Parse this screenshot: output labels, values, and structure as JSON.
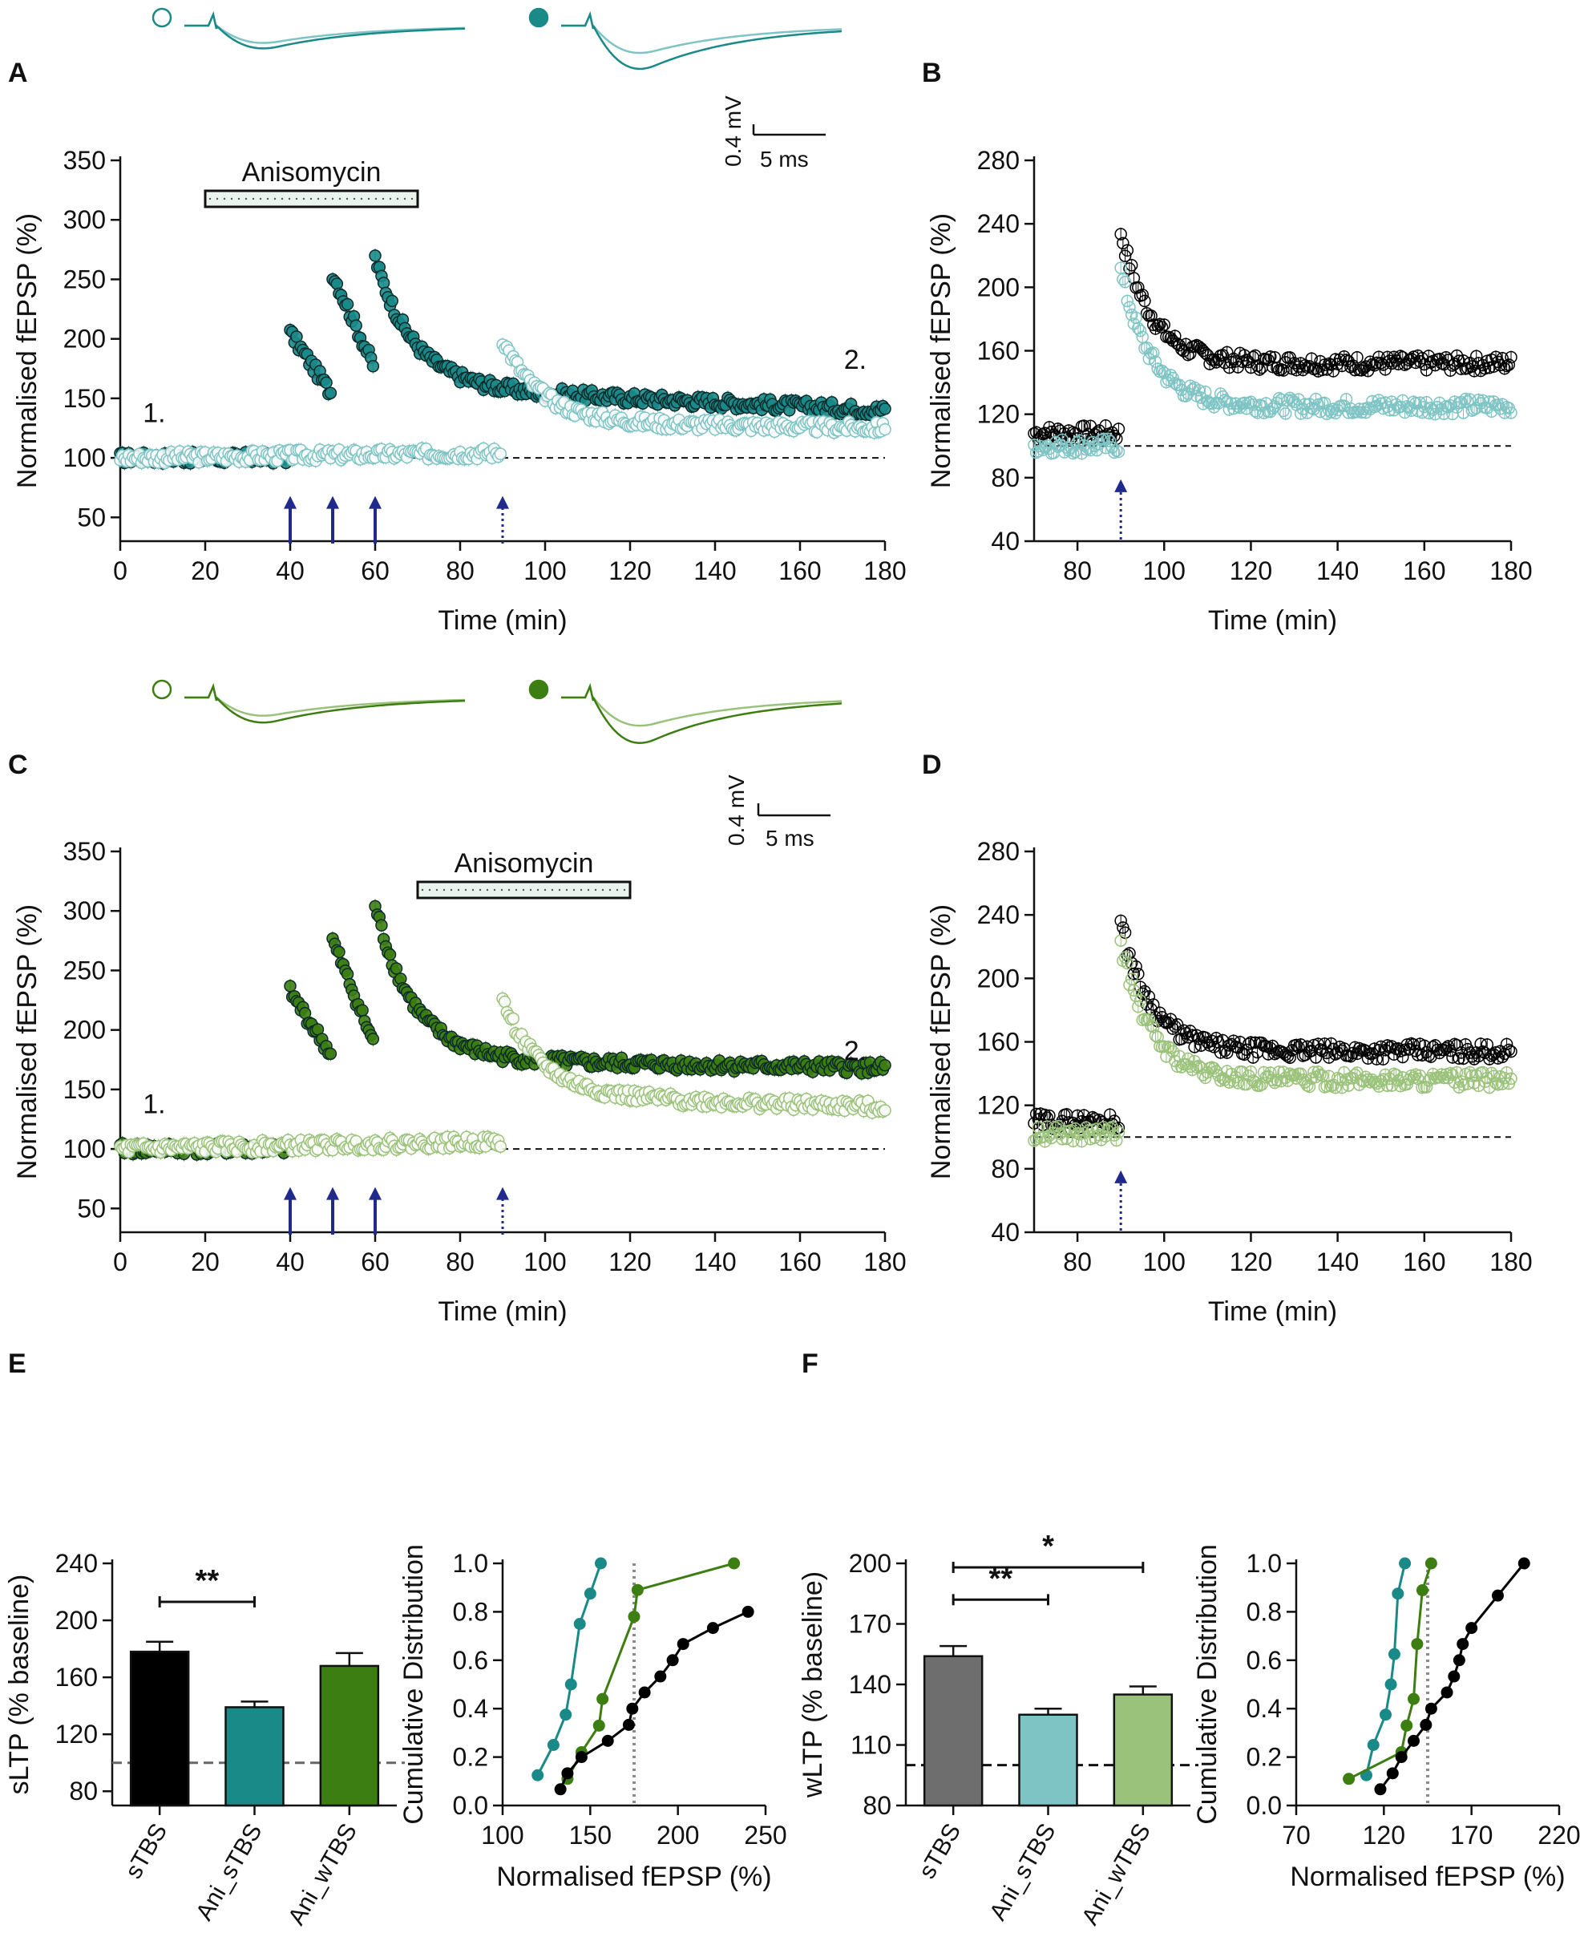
{
  "figure": {
    "panels": {
      "A": "A",
      "B": "B",
      "C": "C",
      "D": "D",
      "E": "E",
      "F": "F"
    }
  },
  "colors": {
    "teal": "#1a8a89",
    "teal_light": "#7fc4c4",
    "green": "#3c7e11",
    "green_light": "#9ac27a",
    "black": "#000000",
    "grey": "#6e6e6e",
    "arrow": "#1f2a8c"
  },
  "scalebar": {
    "voltage": "0.4 mV",
    "time": "5 ms"
  },
  "chart_data": [
    {
      "panel": "A",
      "type": "scatter",
      "title": "",
      "xlabel": "Time (min)",
      "ylabel": "Normalised fEPSP (%)",
      "xlim": [
        0,
        180
      ],
      "ylim": [
        30,
        350
      ],
      "xticks": [
        0,
        20,
        40,
        60,
        80,
        100,
        120,
        140,
        160,
        180
      ],
      "yticks": [
        50,
        100,
        150,
        200,
        250,
        300,
        350
      ],
      "drug": {
        "label": "Anisomycin",
        "start": 20,
        "end": 70
      },
      "tbs_arrows": [
        40,
        50,
        60
      ],
      "weak_arrow": 90,
      "annotations": [
        "1.",
        "2."
      ],
      "baseline": 100,
      "series": [
        {
          "name": "sTBS pathway (filled)",
          "color": "teal",
          "segments": [
            {
              "x": [
                0,
                39
              ],
              "start": 100,
              "end": 100
            },
            {
              "x": [
                40,
                49.5
              ],
              "start": 205,
              "end": 155
            },
            {
              "x": [
                50,
                59.5
              ],
              "start": 255,
              "end": 178
            },
            {
              "x": [
                60,
                180
              ],
              "start": 268,
              "mid": 160,
              "end": 140
            }
          ]
        },
        {
          "name": "wTBS pathway (open)",
          "color": "teal_light",
          "segments": [
            {
              "x": [
                0,
                89.5
              ],
              "start": 100,
              "end": 104
            },
            {
              "x": [
                90,
                180
              ],
              "start": 200,
              "mid": 130,
              "end": 125
            }
          ]
        }
      ]
    },
    {
      "panel": "B",
      "type": "scatter",
      "xlabel": "Time (min)",
      "ylabel": "Normalised fEPSP (%)",
      "xlim": [
        70,
        180
      ],
      "ylim": [
        40,
        280
      ],
      "xticks": [
        80,
        100,
        120,
        140,
        160,
        180
      ],
      "yticks": [
        40,
        80,
        120,
        160,
        200,
        240,
        280
      ],
      "weak_arrow": 90,
      "baseline": 100,
      "series": [
        {
          "name": "control weak (black open)",
          "color": "black",
          "base": 108,
          "peak": 235,
          "plateau": 152
        },
        {
          "name": "Ani weak (teal open)",
          "color": "teal_light",
          "base": 100,
          "peak": 210,
          "plateau": 125
        }
      ]
    },
    {
      "panel": "C",
      "type": "scatter",
      "xlabel": "Time (min)",
      "ylabel": "Normalised fEPSP (%)",
      "xlim": [
        0,
        180
      ],
      "ylim": [
        30,
        350
      ],
      "xticks": [
        0,
        20,
        40,
        60,
        80,
        100,
        120,
        140,
        160,
        180
      ],
      "yticks": [
        50,
        100,
        150,
        200,
        250,
        300,
        350
      ],
      "drug": {
        "label": "Anisomycin",
        "start": 70,
        "end": 120
      },
      "tbs_arrows": [
        40,
        50,
        60
      ],
      "weak_arrow": 90,
      "annotations": [
        "1.",
        "2."
      ],
      "baseline": 100,
      "series": [
        {
          "name": "sTBS pathway (filled)",
          "color": "green",
          "segments": [
            {
              "x": [
                0,
                39
              ],
              "start": 100,
              "end": 100
            },
            {
              "x": [
                40,
                49.5
              ],
              "start": 232,
              "end": 180
            },
            {
              "x": [
                50,
                59.5
              ],
              "start": 275,
              "end": 190
            },
            {
              "x": [
                60,
                180
              ],
              "start": 305,
              "mid": 175,
              "end": 168
            }
          ]
        },
        {
          "name": "wTBS pathway (open)",
          "color": "green_light",
          "segments": [
            {
              "x": [
                0,
                89.5
              ],
              "start": 100,
              "end": 106
            },
            {
              "x": [
                90,
                180
              ],
              "start": 225,
              "mid": 145,
              "end": 135
            }
          ]
        }
      ]
    },
    {
      "panel": "D",
      "type": "scatter",
      "xlabel": "Time (min)",
      "ylabel": "Normalised fEPSP (%)",
      "xlim": [
        70,
        180
      ],
      "ylim": [
        40,
        280
      ],
      "xticks": [
        80,
        100,
        120,
        140,
        160,
        180
      ],
      "yticks": [
        40,
        80,
        120,
        160,
        200,
        240,
        280
      ],
      "weak_arrow": 90,
      "baseline": 100,
      "series": [
        {
          "name": "control weak (black open)",
          "color": "black",
          "base": 110,
          "peak": 235,
          "plateau": 154
        },
        {
          "name": "Ani weak (green open)",
          "color": "green_light",
          "base": 102,
          "peak": 222,
          "plateau": 136
        }
      ]
    },
    {
      "panel": "E-bar",
      "type": "bar",
      "ylabel": "sLTP (% baseline)",
      "ylim": [
        70,
        240
      ],
      "yticks": [
        80,
        120,
        160,
        200,
        240
      ],
      "categories": [
        "sTBS",
        "Ani_sTBS",
        "Ani_wTBS"
      ],
      "values": [
        178,
        139,
        168
      ],
      "errors": [
        7,
        4,
        9
      ],
      "bar_colors": [
        "black",
        "teal",
        "green"
      ],
      "baseline": 100,
      "significance": [
        {
          "pair": [
            0,
            1
          ],
          "label": "**",
          "y": 213
        }
      ]
    },
    {
      "panel": "E-cdf",
      "type": "line",
      "xlabel": "Normalised fEPSP (%)",
      "ylabel": "Cumulative Distribution",
      "xlim": [
        100,
        250
      ],
      "ylim": [
        0,
        1.0
      ],
      "xticks": [
        100,
        150,
        200,
        250
      ],
      "yticks": [
        0.0,
        0.2,
        0.4,
        0.6,
        0.8,
        1.0
      ],
      "vline": 175,
      "series": [
        {
          "name": "Ani_sTBS",
          "color": "teal",
          "x": [
            120,
            129,
            136,
            139,
            144,
            150,
            156
          ],
          "y": [
            0.125,
            0.25,
            0.375,
            0.5,
            0.75,
            0.875,
            1.0
          ]
        },
        {
          "name": "Ani_wTBS",
          "color": "green",
          "x": [
            137,
            145,
            155,
            157,
            175,
            177,
            232
          ],
          "y": [
            0.11,
            0.22,
            0.33,
            0.44,
            0.78,
            0.89,
            1.0
          ]
        },
        {
          "name": "sTBS",
          "color": "black",
          "x": [
            133,
            137,
            145,
            160,
            172,
            174,
            181,
            190,
            197,
            203,
            220,
            240
          ],
          "y": [
            0.067,
            0.133,
            0.2,
            0.267,
            0.333,
            0.4,
            0.467,
            0.533,
            0.6,
            0.667,
            0.733,
            0.8
          ]
        }
      ]
    },
    {
      "panel": "F-bar",
      "type": "bar",
      "ylabel": "wLTP (% baseline)",
      "ylim": [
        80,
        200
      ],
      "yticks": [
        80,
        110,
        140,
        170,
        200
      ],
      "categories": [
        "sTBS",
        "Ani_sTBS",
        "Ani_wTBS"
      ],
      "values": [
        154,
        125,
        135
      ],
      "errors": [
        5,
        3,
        4
      ],
      "bar_colors": [
        "grey",
        "teal_light",
        "green_light"
      ],
      "baseline": 100,
      "significance": [
        {
          "pair": [
            0,
            2
          ],
          "label": "*",
          "y": 198
        },
        {
          "pair": [
            0,
            1
          ],
          "label": "**",
          "y": 182
        }
      ]
    },
    {
      "panel": "F-cdf",
      "type": "line",
      "xlabel": "Normalised fEPSP (%)",
      "ylabel": "Cumulative Distribution",
      "xlim": [
        70,
        220
      ],
      "ylim": [
        0,
        1.0
      ],
      "xticks": [
        70,
        120,
        170,
        220
      ],
      "yticks": [
        0.0,
        0.2,
        0.4,
        0.6,
        0.8,
        1.0
      ],
      "vline": 145,
      "series": [
        {
          "name": "Ani_sTBS",
          "color": "teal",
          "x": [
            110,
            114,
            121,
            124,
            126,
            128,
            132
          ],
          "y": [
            0.125,
            0.25,
            0.375,
            0.5,
            0.625,
            0.875,
            1.0
          ]
        },
        {
          "name": "Ani_wTBS",
          "color": "green",
          "x": [
            100,
            130,
            133,
            137,
            139,
            142,
            147
          ],
          "y": [
            0.11,
            0.22,
            0.33,
            0.44,
            0.667,
            0.889,
            1.0
          ]
        },
        {
          "name": "sTBS",
          "color": "black",
          "x": [
            118,
            125,
            130,
            137,
            144,
            147,
            156,
            160,
            163,
            165,
            170,
            185,
            200
          ],
          "y": [
            0.067,
            0.133,
            0.2,
            0.267,
            0.333,
            0.4,
            0.467,
            0.533,
            0.6,
            0.667,
            0.733,
            0.867,
            1.0
          ]
        }
      ]
    }
  ]
}
